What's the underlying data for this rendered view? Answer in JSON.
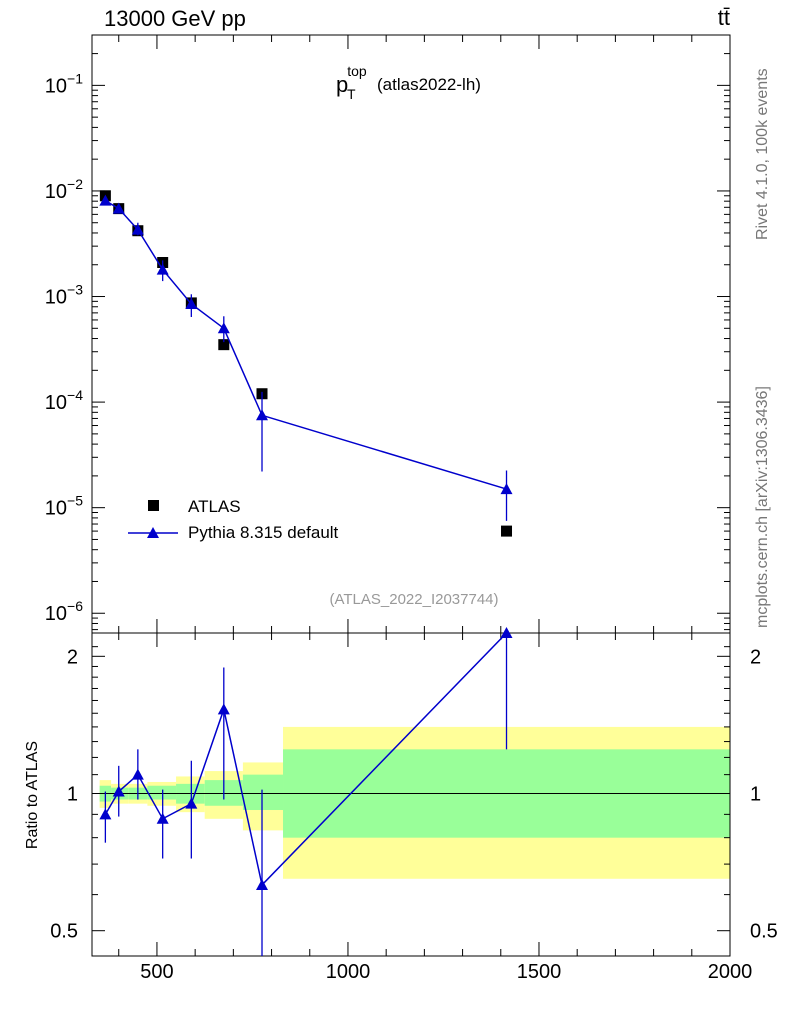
{
  "header": {
    "left": "13000 GeV pp",
    "right": "tt̄"
  },
  "side": {
    "rivet": "Rivet 4.1.0,  100k events",
    "mcplots": "mcplots.cern.ch [arXiv:1306.3436]"
  },
  "chart_data": [
    {
      "type": "scatter",
      "panel": "main",
      "title": {
        "base": "p",
        "sub": "T",
        "sup": "top",
        "suffix": "(atlas2022-lh)"
      },
      "analysis_id": "(ATLAS_2022_I2037744)",
      "yscale": "log",
      "xlim": [
        330,
        2000
      ],
      "ylim": [
        6.5e-07,
        0.3
      ],
      "ytick_labels": [
        {
          "base": "10",
          "exp": "−1",
          "value": 0.1
        },
        {
          "base": "10",
          "exp": "−2",
          "value": 0.01
        },
        {
          "base": "10",
          "exp": "−3",
          "value": 0.001
        },
        {
          "base": "10",
          "exp": "−4",
          "value": 0.0001
        },
        {
          "base": "10",
          "exp": "−5",
          "value": 1e-05
        },
        {
          "base": "10",
          "exp": "−6",
          "value": 1e-06
        }
      ],
      "legend_position": "lower-left",
      "series": [
        {
          "name": "ATLAS",
          "color": "#000000",
          "marker": "square",
          "x": [
            365,
            400,
            450,
            515,
            590,
            675,
            775,
            1415
          ],
          "y": [
            0.009,
            0.0068,
            0.0042,
            0.0021,
            0.00087,
            0.00035,
            0.00012,
            6e-06
          ]
        },
        {
          "name": "Pythia 8.315 default",
          "color": "#0000cc",
          "marker": "triangle",
          "x": [
            365,
            400,
            450,
            515,
            590,
            675,
            775,
            1415
          ],
          "y": [
            0.0081,
            0.0068,
            0.0043,
            0.0018,
            0.00085,
            0.0005,
            7.5e-05,
            1.5e-05
          ],
          "err_lo": [
            0.0075,
            0.0063,
            0.0038,
            0.0014,
            0.00064,
            0.00037,
            2.2e-05,
            7.5e-06
          ],
          "err_hi": [
            0.0088,
            0.0073,
            0.005,
            0.0022,
            0.00105,
            0.00065,
            0.000125,
            2.25e-05
          ]
        }
      ]
    },
    {
      "type": "scatter",
      "panel": "ratio",
      "ylabel": "Ratio to ATLAS",
      "xlim": [
        330,
        2000
      ],
      "ylim": [
        0.44,
        2.25
      ],
      "xticks": [
        500,
        1000,
        1500,
        2000
      ],
      "xtick_labels": [
        "500",
        "1000",
        "1500",
        "2000"
      ],
      "yticks": [
        0.5,
        1,
        2
      ],
      "ytick_labels": [
        "0.5",
        "1",
        "2"
      ],
      "reference_line": 1,
      "bands": [
        {
          "x0": 350,
          "x1": 380,
          "inner": [
            0.96,
            1.04
          ],
          "outer": [
            0.93,
            1.07
          ]
        },
        {
          "x0": 380,
          "x1": 425,
          "inner": [
            0.97,
            1.03
          ],
          "outer": [
            0.95,
            1.05
          ]
        },
        {
          "x0": 425,
          "x1": 475,
          "inner": [
            0.97,
            1.03
          ],
          "outer": [
            0.95,
            1.05
          ]
        },
        {
          "x0": 475,
          "x1": 550,
          "inner": [
            0.97,
            1.04
          ],
          "outer": [
            0.94,
            1.06
          ]
        },
        {
          "x0": 550,
          "x1": 625,
          "inner": [
            0.95,
            1.05
          ],
          "outer": [
            0.91,
            1.09
          ]
        },
        {
          "x0": 625,
          "x1": 725,
          "inner": [
            0.94,
            1.07
          ],
          "outer": [
            0.88,
            1.12
          ]
        },
        {
          "x0": 725,
          "x1": 830,
          "inner": [
            0.92,
            1.1
          ],
          "outer": [
            0.83,
            1.17
          ]
        },
        {
          "x0": 830,
          "x1": 2000,
          "inner": [
            0.8,
            1.25
          ],
          "outer": [
            0.65,
            1.4
          ]
        }
      ],
      "band_colors": {
        "inner": "#99ff99",
        "outer": "#ffff99"
      },
      "series": [
        {
          "name": "Pythia 8.315 default",
          "color": "#0000cc",
          "marker": "triangle",
          "x": [
            365,
            400,
            450,
            515,
            590,
            675,
            775,
            1415
          ],
          "y": [
            0.9,
            1.01,
            1.1,
            0.88,
            0.95,
            1.53,
            0.63,
            2.25
          ],
          "err_lo": [
            0.78,
            0.89,
            0.97,
            0.72,
            0.72,
            0.97,
            0.4,
            1.25
          ],
          "err_hi": [
            1.01,
            1.15,
            1.25,
            1.02,
            1.18,
            1.89,
            1.02,
            2.25
          ]
        }
      ]
    }
  ]
}
